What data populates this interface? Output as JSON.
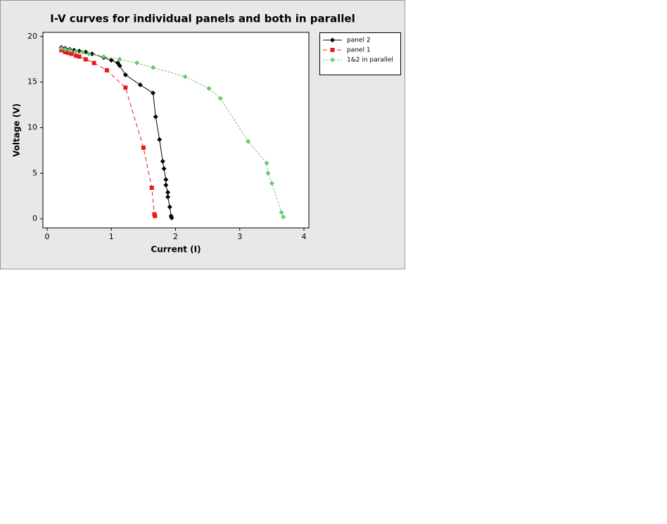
{
  "chart_data": {
    "type": "line",
    "title": "I-V curves for individual panels and both in parallel",
    "x_label": "Current (I)",
    "y_label": "Voltage (V)",
    "xlim": [
      -0.066,
      4.077
    ],
    "ylim": [
      -1.0,
      20.46
    ],
    "xticks": [
      0,
      1,
      2,
      3,
      4
    ],
    "yticks": [
      0,
      5,
      10,
      15,
      20
    ],
    "grid": false,
    "legend": "outside-right",
    "series": [
      {
        "name": "panel 2",
        "color": "#000000",
        "dash": "solid",
        "marker": "diamond",
        "x": [
          0.22,
          0.28,
          0.35,
          0.42,
          0.5,
          0.6,
          0.7,
          0.88,
          1.0,
          1.1,
          1.13,
          1.22,
          1.45,
          1.65,
          1.69,
          1.75,
          1.8,
          1.82,
          1.85,
          1.85,
          1.88,
          1.88,
          1.91,
          1.93,
          1.94
        ],
        "values": [
          18.8,
          18.7,
          18.6,
          18.5,
          18.4,
          18.3,
          18.1,
          17.7,
          17.4,
          17.1,
          16.8,
          15.8,
          14.7,
          13.8,
          11.2,
          8.7,
          6.3,
          5.5,
          4.3,
          3.7,
          2.9,
          2.4,
          1.3,
          0.3,
          0.1
        ]
      },
      {
        "name": "panel 1",
        "color": "#e8191e",
        "dash": "dashed",
        "marker": "square",
        "x": [
          0.22,
          0.28,
          0.33,
          0.38,
          0.45,
          0.5,
          0.6,
          0.73,
          0.93,
          1.22,
          1.5,
          1.63,
          1.67,
          1.68
        ],
        "values": [
          18.5,
          18.3,
          18.2,
          18.1,
          17.9,
          17.8,
          17.5,
          17.1,
          16.3,
          14.4,
          7.8,
          3.4,
          0.5,
          0.3
        ]
      },
      {
        "name": "1&2 in parallel",
        "color": "#6cc86c",
        "dash": "dotted",
        "marker": "diamond",
        "x": [
          0.22,
          0.28,
          0.35,
          0.45,
          0.55,
          0.65,
          0.88,
          1.13,
          1.4,
          1.65,
          2.15,
          2.52,
          2.7,
          3.13,
          3.42,
          3.44,
          3.5,
          3.65,
          3.68
        ],
        "values": [
          18.7,
          18.6,
          18.5,
          18.4,
          18.3,
          18.1,
          17.8,
          17.5,
          17.1,
          16.6,
          15.6,
          14.3,
          13.2,
          8.5,
          6.1,
          5.0,
          3.9,
          0.7,
          0.2
        ]
      }
    ]
  }
}
